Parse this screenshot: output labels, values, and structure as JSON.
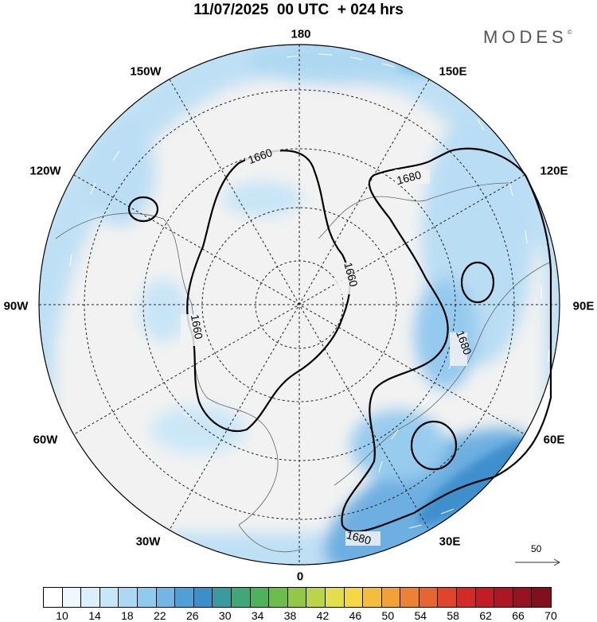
{
  "header": {
    "title": "11/07/2025  00 UTC  + 024 hrs",
    "brand": "MODES",
    "brand_mark": "©"
  },
  "map": {
    "projection": "north-polar-stereographic",
    "longitude_labels": {
      "top": "180",
      "top_left": "150W",
      "top_right": "150E",
      "upper_left": "120W",
      "upper_right": "120E",
      "left": "90W",
      "right": "90E",
      "lower_left": "60W",
      "lower_right": "60E",
      "bottom_left": "30W",
      "bottom_right": "30E",
      "bottom": "0"
    },
    "contour_labels": [
      "1660",
      "1680",
      "1660",
      "1660",
      "1680",
      "1680"
    ],
    "reference_vector": "50"
  },
  "colorbar": {
    "ticks": [
      "10",
      "14",
      "18",
      "22",
      "26",
      "30",
      "34",
      "38",
      "42",
      "46",
      "50",
      "54",
      "58",
      "62",
      "66",
      "70"
    ],
    "colors": [
      "#ffffff",
      "#eef8fd",
      "#dcf0fb",
      "#c6e7f8",
      "#abd9f4",
      "#8fcaef",
      "#70b7e6",
      "#4f9fd9",
      "#3c8fc8",
      "#3a9a9e",
      "#40a878",
      "#4db35a",
      "#6bbe4a",
      "#93c847",
      "#bcd448",
      "#e3df4a",
      "#f5d942",
      "#f4bd3c",
      "#f2a038",
      "#ee8233",
      "#e9652f",
      "#e0452a",
      "#d22a26",
      "#c01d24",
      "#ac1722",
      "#97131f",
      "#82101c"
    ]
  }
}
